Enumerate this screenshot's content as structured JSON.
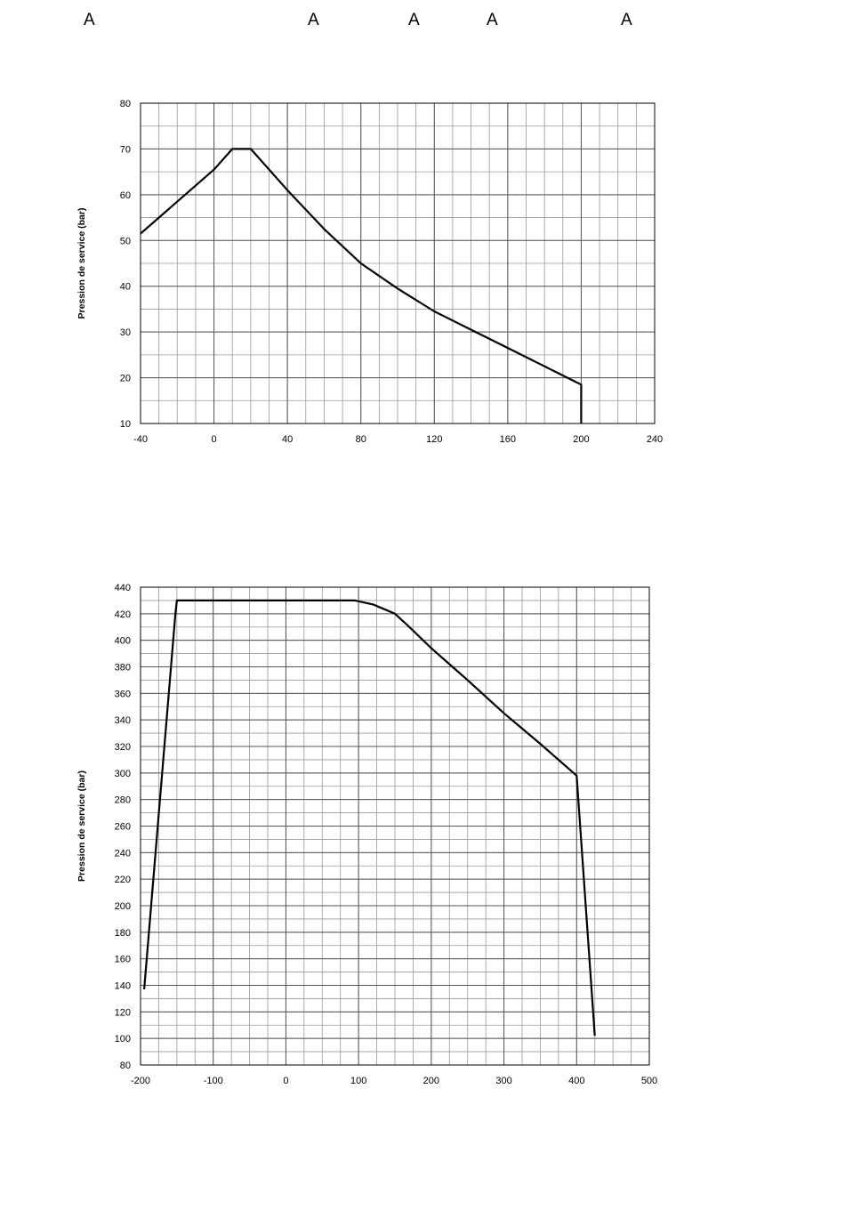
{
  "header": {
    "letters": [
      "A",
      "A",
      "A",
      "A",
      "A"
    ]
  },
  "chart_data": [
    {
      "type": "line",
      "title": "",
      "xlabel": "",
      "ylabel": "Pression de service (bar)",
      "xlim": [
        -40,
        240
      ],
      "ylim": [
        10,
        80
      ],
      "x_ticks": [
        -40,
        0,
        40,
        80,
        120,
        160,
        200,
        240
      ],
      "y_ticks": [
        10,
        20,
        30,
        40,
        50,
        60,
        70,
        80
      ],
      "grid": true,
      "series": [
        {
          "x": [
            -40,
            -20,
            0,
            10,
            20,
            40,
            60,
            80,
            100,
            120,
            140,
            160,
            180,
            200,
            200
          ],
          "y": [
            51.5,
            58.5,
            65.5,
            70,
            70,
            61,
            52.5,
            45,
            39.5,
            34.5,
            30.5,
            26.5,
            22.5,
            18.5,
            10
          ]
        }
      ]
    },
    {
      "type": "line",
      "title": "",
      "xlabel": "",
      "ylabel": "Pression de service (bar)",
      "xlim": [
        -200,
        500
      ],
      "ylim": [
        80,
        440
      ],
      "x_ticks": [
        -200,
        -100,
        0,
        100,
        200,
        300,
        400,
        500
      ],
      "y_ticks": [
        80,
        100,
        120,
        140,
        160,
        180,
        200,
        220,
        240,
        260,
        280,
        300,
        320,
        340,
        360,
        380,
        400,
        420,
        440
      ],
      "grid": true,
      "series": [
        {
          "x": [
            -195,
            -152,
            -150,
            95,
            120,
            150,
            170,
            200,
            250,
            300,
            350,
            400,
            425
          ],
          "y": [
            137,
            420,
            430,
            430,
            427,
            420,
            410,
            394,
            370,
            345,
            322,
            298,
            102
          ]
        }
      ]
    }
  ]
}
